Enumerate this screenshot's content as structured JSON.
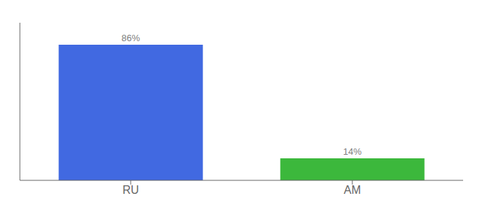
{
  "chart_data": {
    "type": "bar",
    "categories": [
      "RU",
      "AM"
    ],
    "values": [
      86,
      14
    ],
    "value_labels": [
      "86%",
      "14%"
    ],
    "colors": [
      "#4169e1",
      "#3cb83c"
    ],
    "ylim": [
      0,
      100
    ],
    "yticks": [],
    "data_labels": true,
    "tick_labels": "x",
    "grid": false
  }
}
